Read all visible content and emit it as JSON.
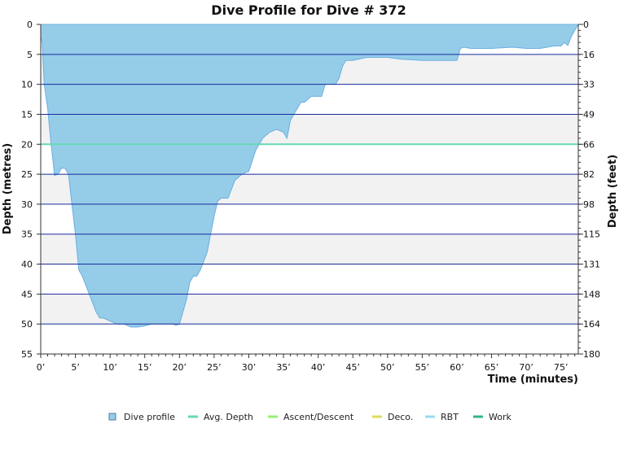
{
  "chart_data": {
    "type": "area",
    "title": "Dive Profile for Dive # 372",
    "xlabel": "Time (minutes)",
    "ylabel_left": "Depth (metres)",
    "ylabel_right": "Depth (feet)",
    "xlim": [
      0,
      77.5
    ],
    "ylim": [
      0,
      55
    ],
    "y_inverted": true,
    "x_ticks": [
      0,
      5,
      10,
      15,
      20,
      25,
      30,
      35,
      40,
      45,
      50,
      55,
      60,
      65,
      70,
      75
    ],
    "x_tick_labels": [
      "0’",
      "5’",
      "10’",
      "15’",
      "20’",
      "25’",
      "30’",
      "35’",
      "40’",
      "45’",
      "50’",
      "55’",
      "60’",
      "65’",
      "70’",
      "75’"
    ],
    "y_ticks": [
      0,
      5,
      10,
      15,
      20,
      25,
      30,
      35,
      40,
      45,
      50,
      55
    ],
    "y_tick_labels": [
      "0",
      "5",
      "10",
      "15",
      "20",
      "25",
      "30",
      "35",
      "40",
      "45",
      "50",
      "55"
    ],
    "y_right_ticks": [
      "0",
      "16",
      "33",
      "49",
      "66",
      "82",
      "98",
      "115",
      "131",
      "148",
      "164",
      "180"
    ],
    "grid": true,
    "avg_depth": 20,
    "legend_position": "bottom",
    "series": [
      {
        "name": "Dive profile",
        "color": "#95cde8",
        "x": [
          0,
          0.2,
          0.5,
          1,
          1.5,
          2,
          2.5,
          3,
          3.5,
          4,
          4.5,
          5,
          5.5,
          6,
          7,
          8,
          8.5,
          9,
          10,
          11,
          12,
          13,
          14,
          15,
          16,
          17,
          18,
          19,
          19.5,
          20,
          21,
          21.5,
          22,
          22.5,
          23,
          24,
          24.5,
          25,
          25.5,
          26,
          27,
          28,
          29,
          30,
          31,
          32,
          33,
          34,
          35,
          35.5,
          36,
          37,
          37.5,
          38,
          39,
          40,
          40.5,
          41,
          42,
          42.5,
          43,
          43.5,
          44,
          44.5,
          45,
          47,
          49,
          50,
          52,
          55,
          58,
          60,
          60.5,
          61,
          62,
          65,
          68,
          70,
          72,
          74,
          75,
          75.5,
          76,
          76.5,
          77,
          77.5
        ],
        "y": [
          2,
          3,
          10,
          14,
          20,
          25.2,
          25,
          24,
          24,
          25,
          30,
          35,
          41,
          42,
          45,
          48,
          49,
          49,
          49.5,
          50,
          50,
          50.5,
          50.5,
          50.3,
          50,
          50,
          50,
          50,
          50.2,
          50,
          46,
          43,
          42,
          42,
          41,
          38,
          35,
          32,
          29.5,
          29,
          29,
          26,
          25,
          24.5,
          21,
          19,
          18,
          17.5,
          18,
          19,
          16,
          14,
          13,
          13,
          12,
          12,
          12,
          10,
          10,
          10,
          9,
          7,
          6,
          6,
          6,
          5.5,
          5.5,
          5.5,
          5.8,
          6,
          6,
          6,
          4,
          3.8,
          4,
          4,
          3.8,
          4,
          4,
          3.6,
          3.6,
          3,
          3.5,
          2,
          1,
          0
        ]
      },
      {
        "name": "Avg. Depth",
        "color": "#66d9b3"
      },
      {
        "name": "Ascent/Descent",
        "color": "#99ee77"
      },
      {
        "name": "Deco.",
        "color": "#dddd55"
      },
      {
        "name": "RBT",
        "color": "#99ddf2"
      },
      {
        "name": "Work",
        "color": "#33b38a"
      }
    ]
  }
}
